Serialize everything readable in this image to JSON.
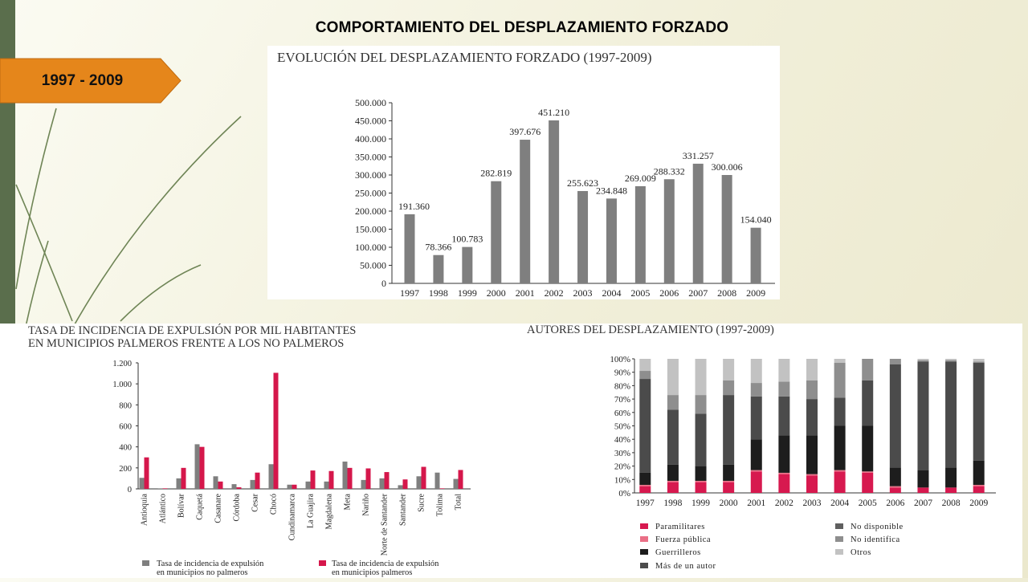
{
  "slide": {
    "title": "COMPORTAMIENTO DEL DESPLAZAMIENTO FORZADO",
    "tag_label": "1997 - 2009"
  },
  "colors": {
    "tag_fill": "#e5861b",
    "bar_gray": "#7f7f7f",
    "palm_red": "#d5174b",
    "series_paramilitares": "#d7194f",
    "series_fuerza_publica": "#ea6f86",
    "series_guerrilleros": "#1d1d1d",
    "series_mas_de_un_autor": "#4b4b4b",
    "series_no_disponible": "#5f5f5f",
    "series_no_identifica": "#8e8e8e",
    "series_otros": "#c2c2c2"
  },
  "chart_data": [
    {
      "type": "bar",
      "title": "EVOLUCIÓN DEL DESPLAZAMIENTO FORZADO (1997-2009)",
      "categories": [
        "1997",
        "1998",
        "1999",
        "2000",
        "2001",
        "2002",
        "2003",
        "2004",
        "2005",
        "2006",
        "2007",
        "2008",
        "2009"
      ],
      "values": [
        191360,
        78366,
        100783,
        282819,
        397676,
        451210,
        255623,
        234848,
        269009,
        288332,
        331257,
        300006,
        154040
      ],
      "value_labels": [
        "191.360",
        "78.366",
        "100.783",
        "282.819",
        "397.676",
        "451.210",
        "255.623",
        "234.848",
        "269.009",
        "288.332",
        "331.257",
        "300.006",
        "154.040"
      ],
      "ylim": [
        0,
        500000
      ],
      "yticks": [
        0,
        50000,
        100000,
        150000,
        200000,
        250000,
        300000,
        350000,
        400000,
        450000,
        500000
      ],
      "ytick_labels": [
        "0",
        "50.000",
        "100.000",
        "150.000",
        "200.000",
        "250.000",
        "300.000",
        "350.000",
        "400.000",
        "450.000",
        "500.000"
      ],
      "grid": false
    },
    {
      "type": "bar",
      "title": "TASA DE INCIDENCIA DE EXPULSIÓN POR MIL HABITANTES EN MUNICIPIOS PALMEROS FRENTE A LOS NO PALMEROS",
      "categories": [
        "Antioquia",
        "Atlántico",
        "Bolívar",
        "Caquetá",
        "Casanare",
        "Córdoba",
        "Cesar",
        "Chocó",
        "Cundinamarca",
        "La Guajira",
        "Magdalena",
        "Meta",
        "Nariño",
        "Norte de Santander",
        "Santander",
        "Sucre",
        "Tolima",
        "Total"
      ],
      "series": [
        {
          "name": "Tasa de incidencia de expulsión en municipios no palmeros",
          "values": [
            105,
            5,
            100,
            425,
            120,
            45,
            85,
            235,
            40,
            70,
            70,
            260,
            85,
            100,
            35,
            120,
            155,
            95
          ]
        },
        {
          "name": "Tasa de incidencia de expulsión en municipios palmeros",
          "values": [
            300,
            5,
            200,
            400,
            70,
            15,
            155,
            1105,
            40,
            175,
            170,
            200,
            195,
            160,
            90,
            210,
            5,
            180
          ]
        }
      ],
      "ylim": [
        0,
        1200
      ],
      "yticks": [
        0,
        200,
        400,
        600,
        800,
        1000,
        1200
      ],
      "ytick_labels": [
        "0",
        "200",
        "400",
        "600",
        "800",
        "1.000",
        "1.200"
      ],
      "legend_placement": "bottom"
    },
    {
      "type": "bar",
      "stacked": true,
      "title": "AUTORES DEL DESPLAZAMIENTO (1997-2009)",
      "categories": [
        "1997",
        "1998",
        "1999",
        "2000",
        "2001",
        "2002",
        "2003",
        "2004",
        "2005",
        "2006",
        "2007",
        "2008",
        "2009"
      ],
      "ylim": [
        0,
        100
      ],
      "yticks": [
        0,
        10,
        20,
        30,
        40,
        50,
        60,
        70,
        80,
        90,
        100
      ],
      "ytick_labels": [
        "0%",
        "10%",
        "20%",
        "30%",
        "40%",
        "50%",
        "60%",
        "70%",
        "80%",
        "90%",
        "100%"
      ],
      "series": [
        {
          "name": "Paramilitares",
          "values": [
            5,
            8,
            8,
            8,
            16,
            14,
            13,
            16,
            15,
            4,
            4,
            4,
            5
          ]
        },
        {
          "name": "Fuerza pública",
          "values": [
            1,
            1,
            1,
            1,
            1,
            1,
            1,
            1,
            1,
            1,
            0,
            0,
            1
          ]
        },
        {
          "name": "Guerrilleros",
          "values": [
            9,
            12,
            11,
            12,
            23,
            28,
            29,
            33,
            34,
            14,
            13,
            15,
            18
          ]
        },
        {
          "name": "Más de un autor",
          "values": [
            70,
            41,
            39,
            52,
            32,
            29,
            27,
            21,
            34,
            77,
            81,
            79,
            73
          ]
        },
        {
          "name": "No disponible",
          "values": [
            0,
            0,
            0,
            0,
            0,
            0,
            0,
            0,
            0,
            0,
            0,
            0,
            0
          ]
        },
        {
          "name": "No identifica",
          "values": [
            6,
            11,
            14,
            11,
            10,
            11,
            14,
            26,
            16,
            4,
            1,
            1,
            1
          ]
        },
        {
          "name": "Otros",
          "values": [
            9,
            27,
            27,
            16,
            18,
            17,
            16,
            3,
            0,
            0,
            1,
            1,
            2
          ]
        }
      ],
      "legend_placement": "bottom"
    }
  ]
}
